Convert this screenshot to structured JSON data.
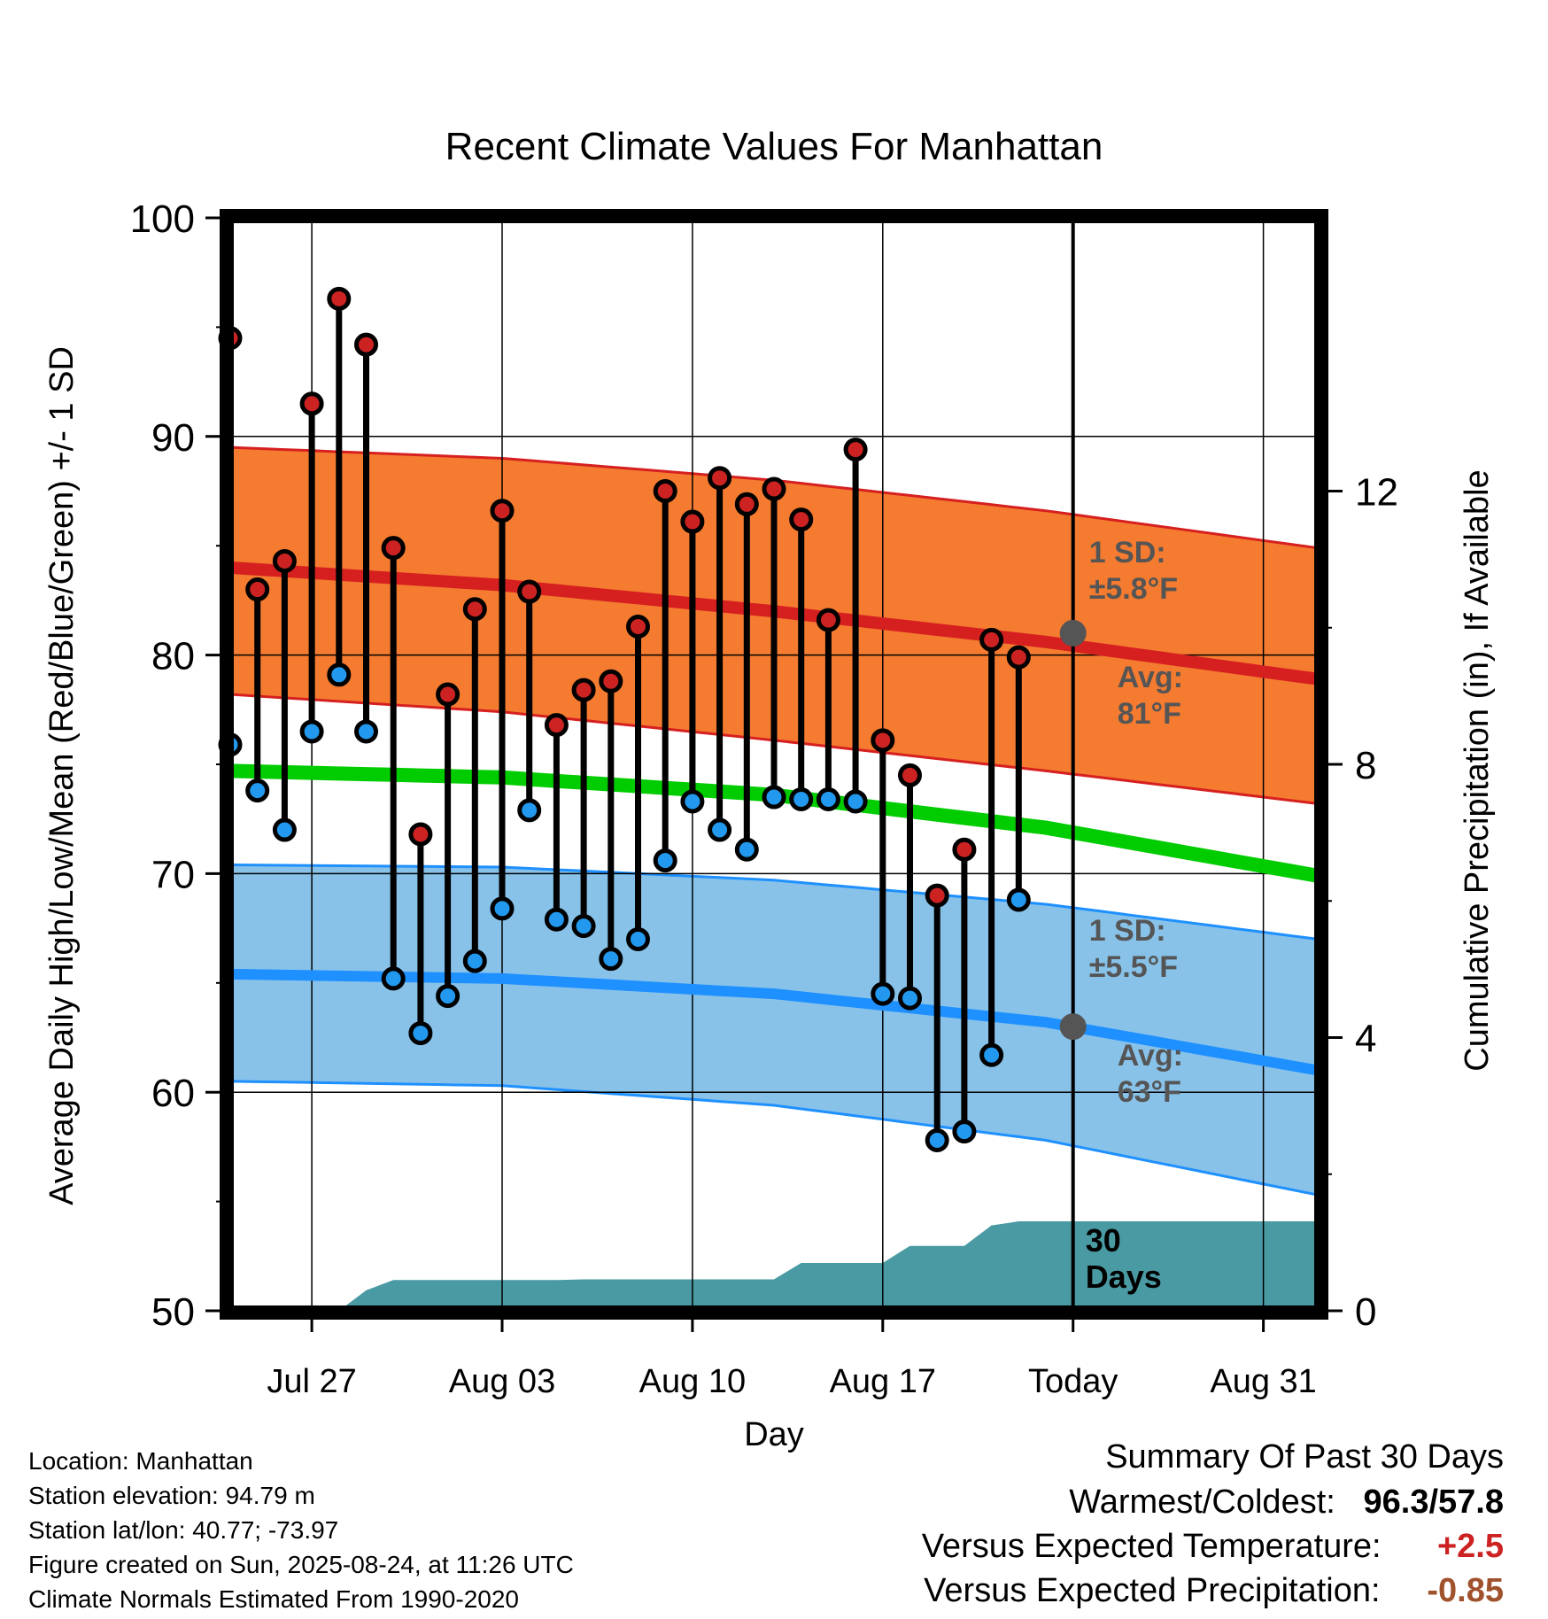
{
  "chart_data": {
    "type": "line",
    "title": "Recent Climate Values For Manhattan",
    "xlabel": "Day",
    "ylabel_left": "Average Daily High/Low/Mean (Red/Blue/Green) +/- 1 SD",
    "ylabel_right": "Cumulative Precipitation (in), If Available",
    "ylim_left": [
      50,
      100
    ],
    "yticks_left": [
      "100",
      "90",
      "80",
      "70",
      "60",
      "50"
    ],
    "ylim_right": [
      0,
      16
    ],
    "yticks_right": [
      "12",
      "8",
      "4",
      "0"
    ],
    "xticks": [
      "Jul 27",
      "Aug 03",
      "Aug 10",
      "Aug 17",
      "Today",
      "Aug 31"
    ],
    "grid": true,
    "days": [
      "Jul 24",
      "Jul 25",
      "Jul 26",
      "Jul 27",
      "Jul 28",
      "Jul 29",
      "Jul 30",
      "Jul 31",
      "Aug 01",
      "Aug 02",
      "Aug 03",
      "Aug 04",
      "Aug 05",
      "Aug 06",
      "Aug 07",
      "Aug 08",
      "Aug 09",
      "Aug 10",
      "Aug 11",
      "Aug 12",
      "Aug 13",
      "Aug 14",
      "Aug 15",
      "Aug 16",
      "Aug 17",
      "Aug 18",
      "Aug 19",
      "Aug 20",
      "Aug 21",
      "Aug 22",
      "Aug 23",
      "Aug 24",
      "Aug 25",
      "Aug 26",
      "Aug 27",
      "Aug 28",
      "Aug 29",
      "Aug 30",
      "Aug 31",
      "Sep 01",
      "Sep 02"
    ],
    "daily_high": [
      94.5,
      83.0,
      84.3,
      91.5,
      96.3,
      94.2,
      84.9,
      71.8,
      78.2,
      82.1,
      86.6,
      82.9,
      76.8,
      78.4,
      78.8,
      81.3,
      87.5,
      86.1,
      88.1,
      86.9,
      87.6,
      86.2,
      81.6,
      89.4,
      76.1,
      74.5,
      69.0,
      71.1,
      80.7,
      79.9
    ],
    "daily_low": [
      75.9,
      73.8,
      72.0,
      76.5,
      79.1,
      76.5,
      65.2,
      62.7,
      64.4,
      66.0,
      68.4,
      72.9,
      67.9,
      67.6,
      66.1,
      67.0,
      70.6,
      73.3,
      72.0,
      71.1,
      73.5,
      73.4,
      73.4,
      73.3,
      64.5,
      64.3,
      57.8,
      58.2,
      61.7,
      68.8
    ],
    "normal_high": [
      84.0,
      83.2,
      82.0,
      80.6,
      78.9
    ],
    "normal_high_sd_upper": [
      89.5,
      89.0,
      88.0,
      86.6,
      84.9
    ],
    "normal_high_sd_lower": [
      78.2,
      77.4,
      76.1,
      74.7,
      73.2
    ],
    "normal_mean": [
      74.7,
      74.4,
      73.6,
      72.1,
      69.9
    ],
    "normal_low": [
      65.4,
      65.2,
      64.5,
      63.2,
      61.0
    ],
    "normal_low_sd_upper": [
      70.4,
      70.3,
      69.7,
      68.6,
      67.0
    ],
    "normal_low_sd_lower": [
      60.5,
      60.3,
      59.4,
      57.8,
      55.3
    ],
    "normal_days": [
      "Jul 24",
      "Aug 03",
      "Aug 13",
      "Aug 23",
      "Sep 02"
    ],
    "cumulative_precip": [
      0,
      0,
      0,
      0,
      0,
      0.3,
      0.45,
      0.45,
      0.45,
      0.45,
      0.45,
      0.45,
      0.45,
      0.46,
      0.46,
      0.46,
      0.46,
      0.46,
      0.46,
      0.46,
      0.46,
      0.7,
      0.7,
      0.7,
      0.7,
      0.95,
      0.95,
      0.95,
      1.25,
      1.31,
      1.31,
      1.31,
      1.31,
      1.31,
      1.31,
      1.31,
      1.31,
      1.31,
      1.31,
      1.31,
      1.31
    ],
    "today_index": 31,
    "annotations": {
      "high_sd_label": "1 SD:",
      "high_sd_value": "±5.8°F",
      "high_avg_label": "Avg:",
      "high_avg_value": "81°F",
      "low_sd_label": "1 SD:",
      "low_sd_value": "±5.5°F",
      "low_avg_label": "Avg:",
      "low_avg_value": "63°F",
      "days_number": "30",
      "days_label": "Days"
    },
    "today_normal_high": 81,
    "today_normal_low": 63
  },
  "colors": {
    "high_band": "#f47b30",
    "high_line": "#d62020",
    "low_band": "#82bfe8",
    "low_line": "#1e90ff",
    "mean_line": "#00cc00",
    "precip_fill": "#4a9aa3",
    "high_dot": "#cc2222",
    "low_dot": "#2299ee",
    "annotation": "#555555",
    "positive": "#cc2222",
    "negative": "#a0522d"
  },
  "station": {
    "location": "Location: Manhattan",
    "elevation": "Station elevation: 94.79 m",
    "latlon": "Station lat/lon: 40.77; -73.97",
    "created": "Figure created on Sun, 2025-08-24, at 11:26 UTC",
    "normals": "Climate Normals Estimated From 1990-2020"
  },
  "summary": {
    "title": "Summary Of Past 30 Days",
    "warm_cold_label": "Warmest/Coldest:",
    "warm_cold_value": "96.3/57.8",
    "temp_label": "Versus Expected Temperature:",
    "temp_value": "+2.5",
    "precip_label": "Versus Expected Precipitation:",
    "precip_value": "-0.85"
  }
}
